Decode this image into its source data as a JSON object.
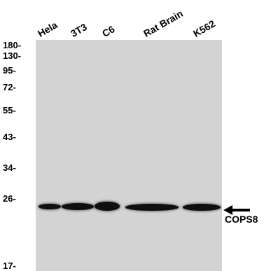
{
  "header_fragment": "",
  "lanes": [
    "Hela",
    "3T3",
    "C6",
    "Rat Brain",
    "K562"
  ],
  "mw_markers": [
    "180-",
    "130-",
    "95-",
    "72-",
    "55-",
    "43-",
    "34-",
    "26-",
    "17-"
  ],
  "target_label": "COPS8",
  "band_color": "#0f0f0f",
  "membrane_color": "#d3d3d3"
}
